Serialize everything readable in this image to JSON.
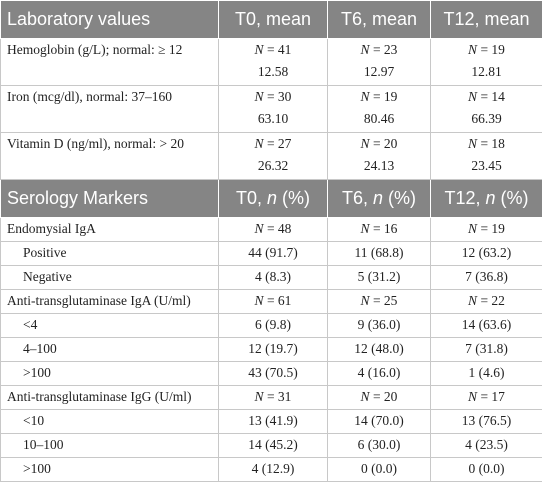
{
  "sections": [
    {
      "header": [
        "Laboratory values",
        "T0, mean",
        "T6, mean",
        "T12, mean"
      ],
      "rows": [
        {
          "label": "Hemoglobin (g/L); normal: ≥ 12",
          "cells": [
            [
              "N = 41",
              "12.58"
            ],
            [
              "N = 23",
              "12.97"
            ],
            [
              "N = 19",
              "12.81"
            ]
          ]
        },
        {
          "label": "Iron (mcg/dl), normal: 37–160",
          "cells": [
            [
              "N = 30",
              "63.10"
            ],
            [
              "N = 19",
              "80.46"
            ],
            [
              "N = 14",
              "66.39"
            ]
          ]
        },
        {
          "label": "Vitamin D (ng/ml), normal: > 20",
          "cells": [
            [
              "N = 27",
              "26.32"
            ],
            [
              "N = 20",
              "24.13"
            ],
            [
              "N = 18",
              "23.45"
            ]
          ]
        }
      ]
    },
    {
      "header": [
        "Serology Markers",
        "T0, n (%)",
        "T6, n (%)",
        "T12, n (%)"
      ],
      "rows": [
        {
          "label": "Endomysial IgA",
          "cells": [
            [
              "N = 48"
            ],
            [
              "N = 16"
            ],
            [
              "N = 19"
            ]
          ],
          "items": [
            {
              "label": "Positive",
              "cells": [
                [
                  "44 (91.7)"
                ],
                [
                  "11 (68.8)"
                ],
                [
                  "12 (63.2)"
                ]
              ]
            },
            {
              "label": "Negative",
              "cells": [
                [
                  "4 (8.3)"
                ],
                [
                  "5 (31.2)"
                ],
                [
                  "7 (36.8)"
                ]
              ]
            }
          ]
        },
        {
          "label": "Anti-transglutaminase IgA (U/ml)",
          "cells": [
            [
              "N = 61"
            ],
            [
              "N = 25"
            ],
            [
              "N = 22"
            ]
          ],
          "items": [
            {
              "label": "<4",
              "cells": [
                [
                  "6 (9.8)"
                ],
                [
                  "9 (36.0)"
                ],
                [
                  "14 (63.6)"
                ]
              ]
            },
            {
              "label": "4–100",
              "cells": [
                [
                  "12 (19.7)"
                ],
                [
                  "12 (48.0)"
                ],
                [
                  "7 (31.8)"
                ]
              ]
            },
            {
              "label": ">100",
              "cells": [
                [
                  "43 (70.5)"
                ],
                [
                  "4 (16.0)"
                ],
                [
                  "1 (4.6)"
                ]
              ]
            }
          ]
        },
        {
          "label": "Anti-transglutaminase IgG (U/ml)",
          "cells": [
            [
              "N = 31"
            ],
            [
              "N = 20"
            ],
            [
              "N = 17"
            ]
          ],
          "items": [
            {
              "label": "<10",
              "cells": [
                [
                  "13 (41.9)"
                ],
                [
                  "14 (70.0)"
                ],
                [
                  "13 (76.5)"
                ]
              ]
            },
            {
              "label": "10–100",
              "cells": [
                [
                  "14 (45.2)"
                ],
                [
                  "6 (30.0)"
                ],
                [
                  "4 (23.5)"
                ]
              ]
            },
            {
              "label": ">100",
              "cells": [
                [
                  "4 (12.9)"
                ],
                [
                  "0 (0.0)"
                ],
                [
                  "0 (0.0)"
                ]
              ]
            }
          ]
        }
      ]
    }
  ]
}
